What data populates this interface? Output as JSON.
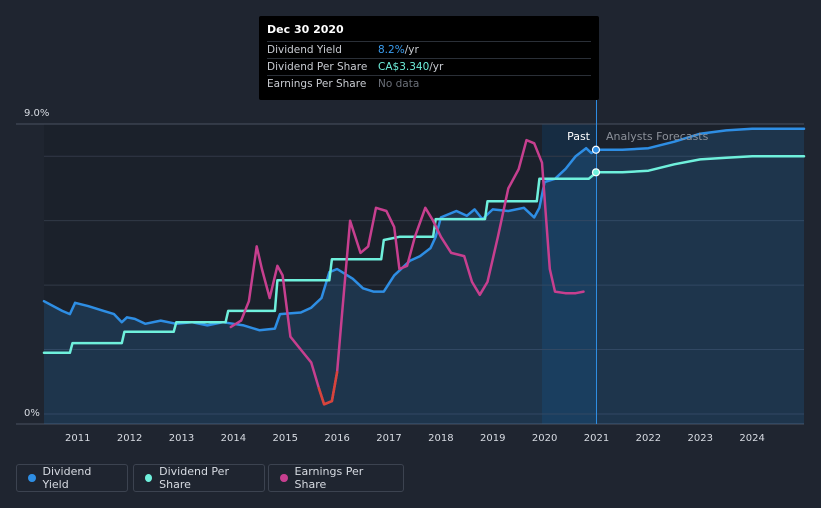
{
  "tooltip": {
    "date": "Dec 30 2020",
    "rows": [
      {
        "label": "Dividend Yield",
        "value": "8.2%",
        "unit": " /yr"
      },
      {
        "label": "Dividend Per Share",
        "value": "CA$3.340",
        "unit": " /yr"
      },
      {
        "label": "Earnings Per Share",
        "value": "No data",
        "unit": ""
      }
    ]
  },
  "regions": {
    "past": "Past",
    "forecast": "Analysts Forecasts"
  },
  "legend": [
    {
      "label": "Dividend Yield",
      "color": "#2e8ee4"
    },
    {
      "label": "Dividend Per Share",
      "color": "#6ff0dc"
    },
    {
      "label": "Earnings Per Share",
      "color": "#c73f8f"
    }
  ],
  "chart_data": {
    "type": "line",
    "y_tick_labels": [
      "9.0%",
      "0%"
    ],
    "x_tick_labels": [
      "2011",
      "2012",
      "2013",
      "2014",
      "2015",
      "2016",
      "2017",
      "2018",
      "2019",
      "2020",
      "2021",
      "2022",
      "2023",
      "2024"
    ],
    "xlim": [
      2010.35,
      2025.0
    ],
    "ylim": [
      0,
      9.0
    ],
    "past_divider": 2021.0,
    "highlight_start": 2019.95,
    "series": [
      {
        "name": "Dividend Yield",
        "color": "#2e8ee4",
        "points": [
          [
            2010.35,
            3.5
          ],
          [
            2010.7,
            3.2
          ],
          [
            2010.85,
            3.1
          ],
          [
            2010.95,
            3.45
          ],
          [
            2011.2,
            3.35
          ],
          [
            2011.5,
            3.2
          ],
          [
            2011.7,
            3.1
          ],
          [
            2011.85,
            2.85
          ],
          [
            2011.95,
            3.0
          ],
          [
            2012.1,
            2.95
          ],
          [
            2012.3,
            2.8
          ],
          [
            2012.6,
            2.9
          ],
          [
            2012.9,
            2.8
          ],
          [
            2013.2,
            2.85
          ],
          [
            2013.5,
            2.75
          ],
          [
            2013.8,
            2.85
          ],
          [
            2014.0,
            2.8
          ],
          [
            2014.2,
            2.75
          ],
          [
            2014.5,
            2.6
          ],
          [
            2014.8,
            2.65
          ],
          [
            2014.9,
            3.1
          ],
          [
            2015.3,
            3.15
          ],
          [
            2015.5,
            3.3
          ],
          [
            2015.7,
            3.6
          ],
          [
            2015.85,
            4.4
          ],
          [
            2016.0,
            4.5
          ],
          [
            2016.3,
            4.2
          ],
          [
            2016.5,
            3.9
          ],
          [
            2016.7,
            3.8
          ],
          [
            2016.9,
            3.8
          ],
          [
            2017.1,
            4.3
          ],
          [
            2017.4,
            4.75
          ],
          [
            2017.6,
            4.9
          ],
          [
            2017.8,
            5.15
          ],
          [
            2017.9,
            5.5
          ],
          [
            2018.0,
            6.1
          ],
          [
            2018.3,
            6.3
          ],
          [
            2018.5,
            6.15
          ],
          [
            2018.65,
            6.35
          ],
          [
            2018.8,
            6.05
          ],
          [
            2019.0,
            6.35
          ],
          [
            2019.3,
            6.3
          ],
          [
            2019.6,
            6.4
          ],
          [
            2019.8,
            6.1
          ],
          [
            2019.9,
            6.4
          ],
          [
            2020.0,
            7.2
          ],
          [
            2020.2,
            7.3
          ],
          [
            2020.4,
            7.6
          ],
          [
            2020.6,
            8.0
          ],
          [
            2020.8,
            8.25
          ],
          [
            2020.9,
            8.1
          ],
          [
            2021.0,
            8.2
          ],
          [
            2021.5,
            8.2
          ],
          [
            2022.0,
            8.25
          ],
          [
            2022.5,
            8.45
          ],
          [
            2023.0,
            8.7
          ],
          [
            2023.5,
            8.8
          ],
          [
            2024.0,
            8.85
          ],
          [
            2025.0,
            8.85
          ]
        ]
      },
      {
        "name": "Dividend Per Share",
        "color": "#6ff0dc",
        "points": [
          [
            2010.35,
            1.9
          ],
          [
            2010.85,
            1.9
          ],
          [
            2010.9,
            2.2
          ],
          [
            2011.85,
            2.2
          ],
          [
            2011.9,
            2.55
          ],
          [
            2012.85,
            2.55
          ],
          [
            2012.9,
            2.85
          ],
          [
            2013.85,
            2.85
          ],
          [
            2013.9,
            3.2
          ],
          [
            2014.8,
            3.2
          ],
          [
            2014.85,
            4.15
          ],
          [
            2015.85,
            4.15
          ],
          [
            2015.9,
            4.8
          ],
          [
            2016.85,
            4.8
          ],
          [
            2016.9,
            5.4
          ],
          [
            2017.2,
            5.5
          ],
          [
            2017.85,
            5.5
          ],
          [
            2017.9,
            6.05
          ],
          [
            2018.85,
            6.05
          ],
          [
            2018.9,
            6.6
          ],
          [
            2019.85,
            6.6
          ],
          [
            2019.9,
            7.3
          ],
          [
            2020.85,
            7.3
          ],
          [
            2021.0,
            7.5
          ],
          [
            2021.5,
            7.5
          ],
          [
            2022.0,
            7.55
          ],
          [
            2022.5,
            7.75
          ],
          [
            2023.0,
            7.9
          ],
          [
            2023.5,
            7.95
          ],
          [
            2024.0,
            8.0
          ],
          [
            2025.0,
            8.0
          ]
        ]
      },
      {
        "name": "Earnings Per Share",
        "color": "#c73f8f",
        "negative_color": "#d8443a",
        "points": [
          [
            2013.95,
            2.7
          ],
          [
            2014.15,
            2.9
          ],
          [
            2014.3,
            3.5
          ],
          [
            2014.45,
            5.2
          ],
          [
            2014.55,
            4.5
          ],
          [
            2014.7,
            3.6
          ],
          [
            2014.85,
            4.6
          ],
          [
            2014.95,
            4.3
          ],
          [
            2015.1,
            2.4
          ],
          [
            2015.3,
            2.0
          ],
          [
            2015.5,
            1.6
          ],
          [
            2015.65,
            0.8
          ],
          [
            2015.75,
            0.3
          ],
          [
            2015.9,
            0.4
          ],
          [
            2016.0,
            1.3
          ],
          [
            2016.1,
            3.2
          ],
          [
            2016.25,
            6.0
          ],
          [
            2016.45,
            5.0
          ],
          [
            2016.6,
            5.2
          ],
          [
            2016.75,
            6.4
          ],
          [
            2016.95,
            6.3
          ],
          [
            2017.1,
            5.8
          ],
          [
            2017.2,
            4.5
          ],
          [
            2017.35,
            4.6
          ],
          [
            2017.5,
            5.5
          ],
          [
            2017.7,
            6.4
          ],
          [
            2017.85,
            6.0
          ],
          [
            2018.0,
            5.5
          ],
          [
            2018.2,
            5.0
          ],
          [
            2018.45,
            4.9
          ],
          [
            2018.6,
            4.1
          ],
          [
            2018.75,
            3.7
          ],
          [
            2018.9,
            4.1
          ],
          [
            2019.1,
            5.5
          ],
          [
            2019.3,
            7.0
          ],
          [
            2019.5,
            7.6
          ],
          [
            2019.65,
            8.5
          ],
          [
            2019.8,
            8.4
          ],
          [
            2019.95,
            7.8
          ],
          [
            2020.1,
            4.5
          ],
          [
            2020.2,
            3.8
          ],
          [
            2020.4,
            3.75
          ],
          [
            2020.6,
            3.75
          ],
          [
            2020.75,
            3.8
          ]
        ]
      }
    ]
  }
}
